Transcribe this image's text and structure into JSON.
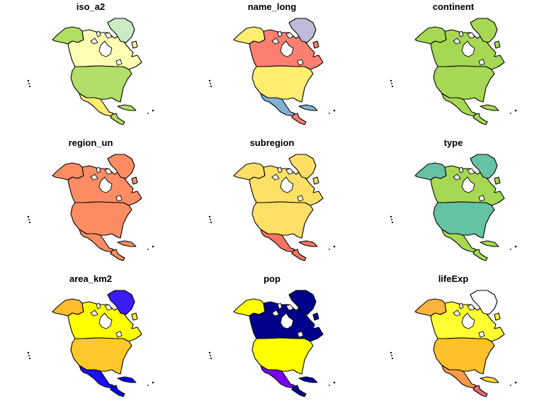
{
  "panels": [
    {
      "title": "iso_a2",
      "colors": {
        "alaska": "#b2df5f",
        "canada": "#ffffb3",
        "greenland": "#ccebc5",
        "usa": "#b3de69",
        "mexico": "#ffed6f",
        "central": "#b3de69",
        "cuba": "#b3de69",
        "island": "#ffffb3"
      }
    },
    {
      "title": "name_long",
      "colors": {
        "alaska": "#ffed6f",
        "canada": "#fb8072",
        "greenland": "#bebada",
        "usa": "#ffed6f",
        "mexico": "#80b1d3",
        "central": "#fb8072",
        "cuba": "#80b1d3",
        "island": "#fb8072"
      }
    },
    {
      "title": "continent",
      "colors": {
        "alaska": "#a6d854",
        "canada": "#a6d854",
        "greenland": "#a6d854",
        "usa": "#a6d854",
        "mexico": "#a6d854",
        "central": "#a6d854",
        "cuba": "#a6d854",
        "island": "#a6d854"
      }
    },
    {
      "title": "region_un",
      "colors": {
        "alaska": "#fc8d62",
        "canada": "#fc8d62",
        "greenland": "#fc8d62",
        "usa": "#fc8d62",
        "mexico": "#fc8d62",
        "central": "#fc8d62",
        "cuba": "#fc8d62",
        "island": "#fc8d62"
      }
    },
    {
      "title": "subregion",
      "colors": {
        "alaska": "#ffe066",
        "canada": "#ffe066",
        "greenland": "#ffe066",
        "usa": "#ffe066",
        "mexico": "#f47560",
        "central": "#f47560",
        "cuba": "#f47560",
        "island": "#ffe066"
      }
    },
    {
      "title": "type",
      "colors": {
        "alaska": "#66c2a5",
        "canada": "#a6d854",
        "greenland": "#66c2a5",
        "usa": "#66c2a5",
        "mexico": "#a6d854",
        "central": "#a6d854",
        "cuba": "#a6d854",
        "island": "#a6d854"
      }
    },
    {
      "title": "area_km2",
      "colors": {
        "alaska": "#fdbb2d",
        "canada": "#ffff00",
        "greenland": "#3b1cf5",
        "usa": "#ffc82a",
        "mexico": "#1a0ff5",
        "central": "#0000ff",
        "cuba": "#0000ff",
        "island": "#ffff00"
      }
    },
    {
      "title": "pop",
      "colors": {
        "alaska": "#ffff00",
        "canada": "#00008b",
        "greenland": "#00008b",
        "usa": "#ffff00",
        "mexico": "#7a00f5",
        "central": "#00009a",
        "cuba": "#00009a",
        "island": "#00008b"
      }
    },
    {
      "title": "lifeExp",
      "colors": {
        "alaska": "#fdb43c",
        "canada": "#ffff33",
        "greenland": "#ffffff",
        "usa": "#ffc12a",
        "mexico": "#fd9a4a",
        "central": "#f2666e",
        "cuba": "#fdd835",
        "island": "#ffff33"
      }
    }
  ]
}
